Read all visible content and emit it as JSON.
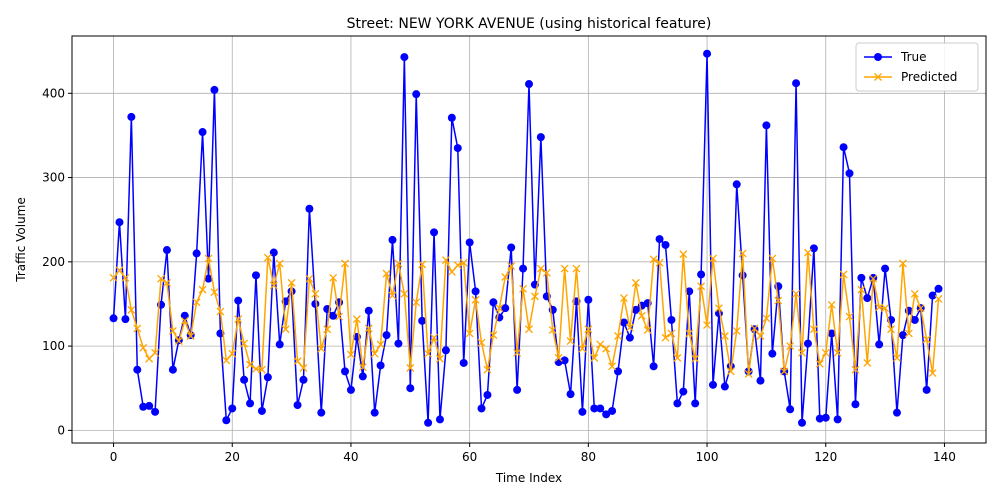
{
  "chart_data": {
    "type": "line",
    "title": "Street: NEW YORK AVENUE (using historical feature)",
    "xlabel": "Time Index",
    "ylabel": "Traffic Volume",
    "xlim": [
      -7,
      147
    ],
    "ylim": [
      -15,
      468
    ],
    "xticks": [
      0,
      20,
      40,
      60,
      80,
      100,
      120,
      140
    ],
    "yticks": [
      0,
      100,
      200,
      300,
      400
    ],
    "grid": true,
    "legend_position": "top-right",
    "series": [
      {
        "name": "True",
        "color": "#0000ff",
        "marker": "circle",
        "values": [
          133,
          247,
          132,
          372,
          72,
          28,
          29,
          22,
          149,
          214,
          72,
          107,
          136,
          113,
          210,
          354,
          180,
          404,
          115,
          12,
          26,
          154,
          60,
          32,
          184,
          23,
          63,
          211,
          102,
          153,
          165,
          30,
          60,
          263,
          150,
          21,
          144,
          136,
          152,
          70,
          48,
          111,
          64,
          142,
          21,
          77,
          113,
          226,
          103,
          443,
          50,
          399,
          130,
          9,
          235,
          13,
          95,
          371,
          335,
          80,
          223,
          165,
          26,
          42,
          152,
          134,
          145,
          217,
          48,
          192,
          411,
          173,
          348,
          159,
          143,
          81,
          83,
          43,
          153,
          22,
          155,
          26,
          26,
          19,
          23,
          70,
          128,
          110,
          143,
          148,
          151,
          76,
          227,
          220,
          131,
          32,
          46,
          165,
          32,
          185,
          447,
          54,
          139,
          52,
          76,
          292,
          184,
          70,
          120,
          59,
          362,
          91,
          171,
          70,
          25,
          412,
          9,
          103,
          216,
          14,
          15,
          115,
          13,
          336,
          305,
          31,
          181,
          157,
          181,
          102,
          192,
          131,
          21,
          113,
          142,
          131,
          145,
          48,
          160,
          168
        ]
      },
      {
        "name": "Predicted",
        "color": "#ffa500",
        "marker": "x",
        "values": [
          181,
          190,
          181,
          143,
          121,
          98,
          85,
          92,
          180,
          175,
          118,
          106,
          130,
          112,
          152,
          167,
          204,
          164,
          141,
          83,
          91,
          132,
          103,
          78,
          73,
          72,
          205,
          172,
          198,
          120,
          175,
          82,
          74,
          180,
          162,
          97,
          120,
          181,
          135,
          198,
          90,
          132,
          75,
          121,
          91,
          102,
          186,
          160,
          198,
          162,
          74,
          152,
          197,
          91,
          110,
          85,
          202,
          188,
          196,
          199,
          115,
          155,
          104,
          72,
          113,
          145,
          182,
          195,
          92,
          168,
          120,
          159,
          192,
          187,
          119,
          86,
          192,
          106,
          192,
          97,
          120,
          86,
          102,
          97,
          76,
          112,
          157,
          122,
          175,
          136,
          119,
          203,
          199,
          110,
          115,
          86,
          209,
          115,
          85,
          171,
          125,
          204,
          145,
          112,
          70,
          118,
          210,
          67,
          121,
          112,
          133,
          204,
          154,
          70,
          100,
          162,
          92,
          211,
          120,
          79,
          92,
          149,
          92,
          185,
          135,
          72,
          167,
          80,
          180,
          146,
          145,
          120,
          86,
          198,
          115,
          162,
          145,
          108,
          68,
          156
        ]
      }
    ]
  }
}
